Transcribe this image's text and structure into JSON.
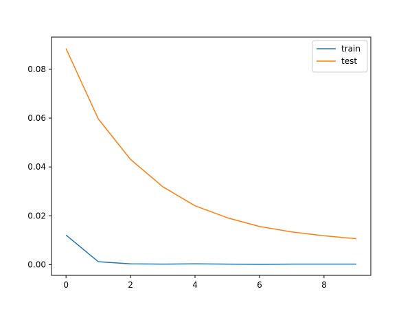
{
  "chart_data": {
    "type": "line",
    "title": "",
    "xlabel": "",
    "ylabel": "",
    "x": [
      0,
      1,
      2,
      3,
      4,
      5,
      6,
      7,
      8,
      9
    ],
    "xlim": [
      -0.45,
      9.45
    ],
    "ylim": [
      -0.0044,
      0.0932
    ],
    "xticks": [
      0,
      2,
      4,
      6,
      8
    ],
    "yticks": [
      0.0,
      0.02,
      0.04,
      0.06,
      0.08
    ],
    "xtick_labels": [
      "0",
      "2",
      "4",
      "6",
      "8"
    ],
    "ytick_labels": [
      "0.00",
      "0.02",
      "0.04",
      "0.06",
      "0.08"
    ],
    "grid": false,
    "legend_position": "top-right",
    "series": [
      {
        "name": "train",
        "color": "#1f77b4",
        "values": [
          0.0121,
          0.0012,
          0.0003,
          0.0002,
          0.0003,
          0.0002,
          0.0001,
          0.0002,
          0.0002,
          0.0002
        ]
      },
      {
        "name": "test",
        "color": "#ff7f0e",
        "values": [
          0.0885,
          0.0597,
          0.0431,
          0.0319,
          0.0241,
          0.0192,
          0.0156,
          0.0134,
          0.0118,
          0.0106
        ]
      }
    ]
  }
}
